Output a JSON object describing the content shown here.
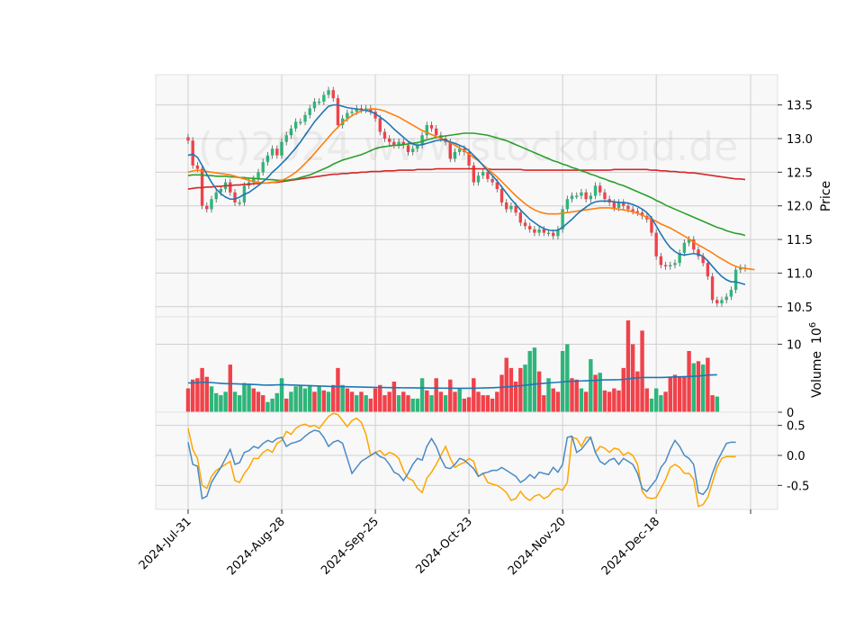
{
  "chart_data": {
    "type": "candlestick",
    "watermark": "(c)2024 www.stockdroid.de",
    "x_labels": [
      "2024-Jul-31",
      "2024-Aug-28",
      "2024-Sep-25",
      "2024-Oct-23",
      "2024-Nov-20",
      "2024-Dec-18"
    ],
    "x_label_index": [
      0,
      20,
      40,
      60,
      80,
      100
    ],
    "colors": {
      "up": "#2fb57a",
      "down": "#f0424a",
      "sma_short": "#1f77b4",
      "sma_mid": "#ff7f0e",
      "sma_long": "#2ca02c",
      "sma_longest": "#d62728",
      "volume_ma": "#1f77b4",
      "osc_a": "#4a8ac4",
      "osc_b": "#ffa500"
    },
    "price_panel": {
      "ylabel": "Price",
      "ylim": [
        10.35,
        13.95
      ],
      "yticks": [
        10.5,
        11.0,
        11.5,
        12.0,
        12.5,
        13.0,
        13.5
      ],
      "close": [
        12.97,
        12.6,
        12.55,
        12.0,
        11.95,
        12.1,
        12.2,
        12.25,
        12.35,
        12.2,
        12.05,
        12.05,
        12.3,
        12.35,
        12.4,
        12.5,
        12.65,
        12.75,
        12.85,
        12.75,
        12.95,
        13.05,
        13.15,
        13.25,
        13.25,
        13.35,
        13.45,
        13.55,
        13.55,
        13.65,
        13.72,
        13.6,
        13.2,
        13.3,
        13.38,
        13.4,
        13.45,
        13.43,
        13.45,
        13.4,
        13.3,
        13.1,
        13.0,
        12.95,
        12.9,
        12.95,
        12.9,
        12.8,
        12.85,
        12.9,
        13.05,
        13.2,
        13.15,
        13.05,
        13.0,
        12.95,
        12.7,
        12.8,
        12.85,
        12.8,
        12.6,
        12.35,
        12.45,
        12.5,
        12.4,
        12.35,
        12.25,
        12.05,
        11.95,
        12.0,
        11.9,
        11.75,
        11.7,
        11.65,
        11.6,
        11.65,
        11.6,
        11.6,
        11.55,
        11.65,
        11.95,
        12.1,
        12.15,
        12.15,
        12.2,
        12.1,
        12.15,
        12.3,
        12.2,
        12.1,
        12.05,
        11.97,
        12.05,
        12.0,
        11.95,
        11.92,
        11.9,
        11.85,
        11.8,
        11.6,
        11.25,
        11.12,
        11.1,
        11.12,
        11.15,
        11.3,
        11.45,
        11.5,
        11.35,
        11.25,
        11.15,
        10.95,
        10.6,
        10.55,
        10.6,
        10.65,
        10.75,
        11.05,
        11.08,
        11.07
      ],
      "sma_short": [
        12.75,
        12.77,
        12.72,
        12.6,
        12.47,
        12.35,
        12.25,
        12.18,
        12.13,
        12.1,
        12.1,
        12.13,
        12.17,
        12.2,
        12.25,
        12.3,
        12.36,
        12.42,
        12.5,
        12.56,
        12.63,
        12.7,
        12.78,
        12.86,
        12.95,
        13.05,
        13.15,
        13.25,
        13.33,
        13.41,
        13.48,
        13.5,
        13.5,
        13.48,
        13.46,
        13.45,
        13.44,
        13.43,
        13.42,
        13.4,
        13.37,
        13.32,
        13.27,
        13.21,
        13.14,
        13.08,
        13.02,
        12.96,
        12.92,
        12.9,
        12.91,
        12.93,
        12.95,
        12.97,
        12.98,
        12.98,
        12.95,
        12.93,
        12.9,
        12.87,
        12.82,
        12.75,
        12.68,
        12.6,
        12.52,
        12.45,
        12.37,
        12.28,
        12.19,
        12.1,
        12.02,
        11.94,
        11.87,
        11.8,
        11.75,
        11.7,
        11.66,
        11.64,
        11.63,
        11.64,
        11.68,
        11.74,
        11.8,
        11.87,
        11.93,
        11.98,
        12.03,
        12.06,
        12.07,
        12.07,
        12.07,
        12.06,
        12.05,
        12.05,
        12.04,
        12.02,
        11.99,
        11.95,
        11.9,
        11.82,
        11.7,
        11.58,
        11.47,
        11.38,
        11.32,
        11.28,
        11.27,
        11.28,
        11.29,
        11.28,
        11.25,
        11.18,
        11.1,
        11.02,
        10.95,
        10.9,
        10.87,
        10.87,
        10.85,
        10.83
      ],
      "sma_mid": [
        12.5,
        12.52,
        12.53,
        12.52,
        12.51,
        12.5,
        12.49,
        12.48,
        12.47,
        12.46,
        12.44,
        12.42,
        12.4,
        12.38,
        12.36,
        12.35,
        12.34,
        12.34,
        12.35,
        12.36,
        12.38,
        12.41,
        12.45,
        12.5,
        12.56,
        12.63,
        12.7,
        12.78,
        12.86,
        12.94,
        13.02,
        13.1,
        13.17,
        13.24,
        13.29,
        13.34,
        13.38,
        13.41,
        13.43,
        13.44,
        13.44,
        13.43,
        13.41,
        13.38,
        13.35,
        13.32,
        13.28,
        13.24,
        13.2,
        13.16,
        13.12,
        13.09,
        13.06,
        13.03,
        13.0,
        12.97,
        12.94,
        12.9,
        12.86,
        12.82,
        12.77,
        12.72,
        12.67,
        12.61,
        12.55,
        12.49,
        12.43,
        12.36,
        12.29,
        12.22,
        12.15,
        12.09,
        12.03,
        11.98,
        11.94,
        11.91,
        11.89,
        11.88,
        11.88,
        11.88,
        11.89,
        11.9,
        11.91,
        11.92,
        11.93,
        11.94,
        11.95,
        11.96,
        11.97,
        11.97,
        11.97,
        11.96,
        11.95,
        11.94,
        11.93,
        11.91,
        11.89,
        11.86,
        11.83,
        11.8,
        11.77,
        11.73,
        11.7,
        11.67,
        11.63,
        11.59,
        11.55,
        11.51,
        11.46,
        11.42,
        11.38,
        11.34,
        11.3,
        11.25,
        11.21,
        11.17,
        11.13,
        11.1,
        11.08,
        11.07,
        11.06,
        11.05
      ],
      "sma_long": [
        12.45,
        12.46,
        12.46,
        12.46,
        12.45,
        12.45,
        12.44,
        12.44,
        12.44,
        12.43,
        12.43,
        12.42,
        12.42,
        12.41,
        12.41,
        12.4,
        12.4,
        12.39,
        12.39,
        12.38,
        12.38,
        12.38,
        12.39,
        12.4,
        12.42,
        12.44,
        12.46,
        12.49,
        12.52,
        12.55,
        12.58,
        12.62,
        12.65,
        12.68,
        12.7,
        12.72,
        12.74,
        12.76,
        12.79,
        12.82,
        12.85,
        12.87,
        12.88,
        12.89,
        12.9,
        12.9,
        12.91,
        12.92,
        12.93,
        12.94,
        12.96,
        12.98,
        13.0,
        13.02,
        13.03,
        13.04,
        13.05,
        13.06,
        13.07,
        13.08,
        13.08,
        13.08,
        13.07,
        13.06,
        13.05,
        13.03,
        13.01,
        12.99,
        12.97,
        12.94,
        12.91,
        12.88,
        12.85,
        12.82,
        12.79,
        12.76,
        12.73,
        12.7,
        12.67,
        12.65,
        12.62,
        12.6,
        12.57,
        12.55,
        12.52,
        12.5,
        12.47,
        12.45,
        12.42,
        12.4,
        12.37,
        12.35,
        12.32,
        12.3,
        12.27,
        12.24,
        12.21,
        12.18,
        12.15,
        12.12,
        12.08,
        12.05,
        12.01,
        11.98,
        11.95,
        11.92,
        11.89,
        11.86,
        11.83,
        11.8,
        11.77,
        11.74,
        11.71,
        11.68,
        11.66,
        11.63,
        11.61,
        11.59,
        11.58,
        11.56
      ],
      "sma_longest": [
        12.25,
        12.26,
        12.27,
        12.27,
        12.28,
        12.28,
        12.29,
        12.29,
        12.3,
        12.3,
        12.31,
        12.31,
        12.32,
        12.32,
        12.33,
        12.33,
        12.34,
        12.34,
        12.35,
        12.35,
        12.36,
        12.37,
        12.38,
        12.39,
        12.4,
        12.41,
        12.42,
        12.43,
        12.44,
        12.45,
        12.46,
        12.47,
        12.47,
        12.48,
        12.48,
        12.49,
        12.49,
        12.5,
        12.5,
        12.51,
        12.51,
        12.51,
        12.52,
        12.52,
        12.52,
        12.53,
        12.53,
        12.53,
        12.53,
        12.54,
        12.54,
        12.54,
        12.54,
        12.55,
        12.55,
        12.55,
        12.55,
        12.55,
        12.55,
        12.55,
        12.55,
        12.55,
        12.55,
        12.55,
        12.55,
        12.54,
        12.54,
        12.54,
        12.54,
        12.54,
        12.54,
        12.54,
        12.53,
        12.53,
        12.53,
        12.53,
        12.53,
        12.53,
        12.53,
        12.53,
        12.53,
        12.53,
        12.53,
        12.53,
        12.53,
        12.53,
        12.53,
        12.53,
        12.53,
        12.53,
        12.53,
        12.54,
        12.54,
        12.54,
        12.54,
        12.54,
        12.54,
        12.54,
        12.54,
        12.53,
        12.53,
        12.52,
        12.52,
        12.51,
        12.51,
        12.5,
        12.5,
        12.49,
        12.49,
        12.48,
        12.47,
        12.46,
        12.45,
        12.44,
        12.43,
        12.42,
        12.41,
        12.4,
        12.4,
        12.39
      ]
    },
    "volume_panel": {
      "ylabel": "Volume",
      "exponent_label": "10",
      "exponent_power": "6",
      "ylim": [
        0,
        13.5
      ],
      "yticks": [
        0,
        10
      ],
      "volume": [
        3.5,
        4.8,
        5.0,
        6.5,
        5.2,
        3.8,
        2.8,
        2.5,
        3.0,
        7.0,
        3.0,
        2.5,
        4.3,
        4.2,
        3.5,
        3.0,
        2.5,
        1.5,
        2.0,
        2.8,
        5.0,
        2.0,
        3.0,
        3.8,
        4.0,
        3.5,
        4.0,
        3.0,
        3.8,
        3.2,
        3.0,
        4.0,
        6.5,
        4.0,
        3.5,
        3.0,
        2.5,
        3.0,
        2.5,
        2.0,
        3.5,
        4.0,
        2.5,
        3.0,
        4.5,
        2.5,
        3.0,
        2.5,
        2.0,
        2.0,
        5.0,
        3.2,
        2.5,
        5.0,
        3.0,
        2.5,
        4.8,
        3.0,
        3.5,
        2.0,
        2.2,
        5.0,
        3.0,
        2.5,
        2.5,
        2.0,
        3.0,
        5.5,
        8.0,
        6.5,
        4.5,
        6.5,
        7.0,
        9.0,
        9.5,
        6.0,
        2.5,
        5.0,
        3.5,
        3.0,
        9.0,
        10.0,
        5.0,
        4.8,
        3.5,
        3.0,
        7.8,
        5.5,
        5.8,
        3.2,
        3.0,
        3.5,
        3.2,
        6.5,
        13.5,
        10.0,
        6.0,
        12.0,
        3.5,
        2.0,
        3.5,
        2.5,
        3.0,
        5.2,
        5.5,
        5.2,
        5.3,
        9.0,
        7.2,
        7.5,
        7.0,
        8.0,
        2.5,
        2.3
      ],
      "volume_ma": [
        4.3,
        4.3,
        4.35,
        4.4,
        4.4,
        4.35,
        4.3,
        4.25,
        4.2,
        4.2,
        4.18,
        4.15,
        4.12,
        4.1,
        4.08,
        4.05,
        4.0,
        3.98,
        4.0,
        4.02,
        4.05,
        4.03,
        4.0,
        3.98,
        3.95,
        3.93,
        3.9,
        3.88,
        3.85,
        3.83,
        3.8,
        3.78,
        3.78,
        3.76,
        3.75,
        3.73,
        3.72,
        3.7,
        3.68,
        3.66,
        3.65,
        3.64,
        3.63,
        3.62,
        3.61,
        3.6,
        3.59,
        3.58,
        3.58,
        3.57,
        3.57,
        3.56,
        3.55,
        3.55,
        3.54,
        3.53,
        3.53,
        3.52,
        3.52,
        3.52,
        3.52,
        3.53,
        3.54,
        3.56,
        3.58,
        3.6,
        3.63,
        3.67,
        3.72,
        3.78,
        3.84,
        3.9,
        3.97,
        4.05,
        4.13,
        4.2,
        4.25,
        4.3,
        4.35,
        4.4,
        4.45,
        4.52,
        4.55,
        4.58,
        4.6,
        4.62,
        4.65,
        4.68,
        4.72,
        4.75,
        4.76,
        4.77,
        4.78,
        4.82,
        4.9,
        5.0,
        5.05,
        5.1,
        5.1,
        5.1,
        5.1,
        5.1,
        5.12,
        5.15,
        5.18,
        5.2,
        5.22,
        5.25,
        5.28,
        5.32,
        5.38,
        5.45,
        5.48,
        5.5
      ],
      "bar_up": [
        false,
        false,
        false,
        false,
        false,
        true,
        true,
        true,
        true,
        false,
        true,
        true,
        true,
        true,
        false,
        false,
        false,
        true,
        true,
        true,
        true,
        false,
        true,
        true,
        true,
        true,
        true,
        false,
        true,
        false,
        true,
        false,
        false,
        true,
        false,
        false,
        true,
        false,
        true,
        false,
        false,
        false,
        false,
        false,
        false,
        true,
        false,
        false,
        true,
        true,
        true,
        false,
        true,
        false,
        false,
        true,
        false,
        false,
        true,
        false,
        false,
        false,
        false,
        false,
        false,
        false,
        false,
        false,
        false,
        false,
        false,
        false,
        true,
        true,
        true,
        false,
        false,
        true,
        false,
        false,
        true,
        true,
        false,
        false,
        true,
        false,
        true,
        false,
        true,
        false,
        false,
        false,
        false,
        false,
        false,
        false,
        false,
        false,
        false,
        true,
        true,
        true,
        false,
        false,
        false,
        false,
        false,
        false,
        true,
        false,
        true,
        false,
        false,
        true,
        false,
        false
      ]
    },
    "oscillator_panel": {
      "ylim": [
        -0.9,
        0.72
      ],
      "yticks": [
        -0.5,
        0.0,
        0.5
      ],
      "series_a": [
        0.22,
        -0.15,
        -0.18,
        -0.72,
        -0.68,
        -0.45,
        -0.32,
        -0.2,
        -0.05,
        0.1,
        -0.15,
        -0.12,
        0.05,
        0.08,
        0.15,
        0.12,
        0.2,
        0.25,
        0.22,
        0.28,
        0.3,
        0.15,
        0.2,
        0.22,
        0.25,
        0.32,
        0.38,
        0.42,
        0.4,
        0.3,
        0.15,
        0.22,
        0.25,
        0.2,
        -0.05,
        -0.3,
        -0.2,
        -0.1,
        -0.05,
        0.0,
        0.05,
        -0.02,
        -0.05,
        -0.15,
        -0.28,
        -0.32,
        -0.42,
        -0.3,
        -0.15,
        -0.05,
        -0.08,
        0.15,
        0.28,
        0.15,
        -0.05,
        -0.2,
        -0.22,
        -0.15,
        -0.05,
        -0.08,
        -0.15,
        -0.22,
        -0.35,
        -0.3,
        -0.28,
        -0.25,
        -0.25,
        -0.2,
        -0.25,
        -0.3,
        -0.35,
        -0.45,
        -0.4,
        -0.32,
        -0.38,
        -0.28,
        -0.3,
        -0.32,
        -0.2,
        -0.28,
        -0.15,
        0.3,
        0.32,
        0.05,
        0.1,
        0.2,
        0.3,
        0.05,
        -0.1,
        -0.15,
        -0.08,
        -0.05,
        -0.15,
        -0.05,
        -0.1,
        -0.15,
        -0.3,
        -0.55,
        -0.6,
        -0.5,
        -0.4,
        -0.2,
        -0.1,
        0.1,
        0.25,
        0.15,
        0.0,
        -0.05,
        -0.15,
        -0.62,
        -0.65,
        -0.55,
        -0.3,
        -0.1,
        0.05,
        0.2,
        0.22,
        0.22
      ],
      "series_b": [
        0.45,
        0.1,
        -0.05,
        -0.5,
        -0.55,
        -0.35,
        -0.25,
        -0.2,
        -0.15,
        -0.1,
        -0.42,
        -0.45,
        -0.3,
        -0.2,
        -0.05,
        -0.05,
        0.05,
        0.1,
        0.05,
        0.2,
        0.25,
        0.4,
        0.35,
        0.45,
        0.5,
        0.52,
        0.48,
        0.5,
        0.45,
        0.55,
        0.65,
        0.7,
        0.68,
        0.58,
        0.48,
        0.58,
        0.62,
        0.55,
        0.35,
        0.0,
        0.05,
        0.08,
        0.0,
        0.05,
        0.02,
        -0.05,
        -0.25,
        -0.38,
        -0.42,
        -0.55,
        -0.62,
        -0.38,
        -0.28,
        -0.15,
        0.0,
        0.15,
        -0.05,
        -0.2,
        -0.15,
        -0.12,
        -0.05,
        -0.1,
        -0.35,
        -0.3,
        -0.45,
        -0.48,
        -0.5,
        -0.55,
        -0.62,
        -0.75,
        -0.72,
        -0.6,
        -0.7,
        -0.75,
        -0.68,
        -0.65,
        -0.72,
        -0.68,
        -0.58,
        -0.55,
        -0.58,
        -0.45,
        0.3,
        0.28,
        0.15,
        0.3,
        0.3,
        0.05,
        0.15,
        0.12,
        0.05,
        0.12,
        0.1,
        0.0,
        0.05,
        0.0,
        -0.15,
        -0.6,
        -0.7,
        -0.72,
        -0.7,
        -0.55,
        -0.4,
        -0.2,
        -0.15,
        -0.2,
        -0.3,
        -0.3,
        -0.4,
        -0.85,
        -0.82,
        -0.7,
        -0.45,
        -0.2,
        -0.05,
        -0.02,
        -0.02,
        -0.02
      ]
    }
  }
}
